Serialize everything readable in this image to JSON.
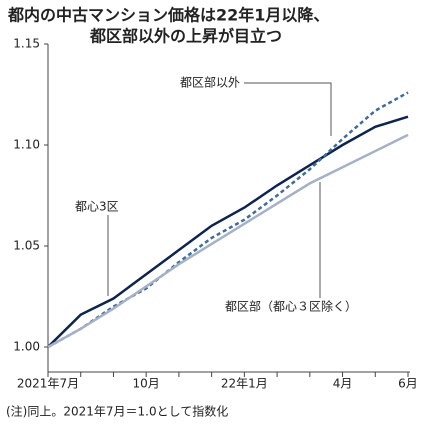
{
  "chart_data": {
    "type": "line",
    "title": [
      "都内の中古マンション価格は22年1月以降、",
      "都区部以外の上昇が目立つ"
    ],
    "categories": [
      "2021年7月",
      null,
      null,
      "10月",
      null,
      null,
      "22年1月",
      null,
      null,
      "4月",
      null,
      "6月"
    ],
    "series": [
      {
        "name": "都心3区",
        "color": "#0d2451",
        "dash": false,
        "values": [
          1.0,
          1.016,
          1.024,
          1.036,
          1.048,
          1.06,
          1.069,
          1.08,
          1.09,
          1.1,
          1.109,
          1.114
        ]
      },
      {
        "name": "都区部以外",
        "color": "#3f6c9c",
        "dash": true,
        "values": [
          1.0,
          1.009,
          1.02,
          1.029,
          1.042,
          1.054,
          1.063,
          1.075,
          1.088,
          1.103,
          1.117,
          1.126
        ]
      },
      {
        "name": "都区部（都心３区除く）",
        "color": "#a4b1c6",
        "dash": false,
        "values": [
          1.0,
          1.009,
          1.019,
          1.03,
          1.041,
          1.051,
          1.061,
          1.071,
          1.081,
          1.089,
          1.097,
          1.105
        ]
      }
    ],
    "ylim": [
      1.0,
      1.15
    ],
    "yticks": [
      {
        "value": 1.0,
        "label": "1.00"
      },
      {
        "value": 1.05,
        "label": "1.05"
      },
      {
        "value": 1.1,
        "label": "1.10"
      },
      {
        "value": 1.15,
        "label": "1.15"
      }
    ],
    "note": "(注)同上。2021年7月＝1.0として指数化"
  }
}
